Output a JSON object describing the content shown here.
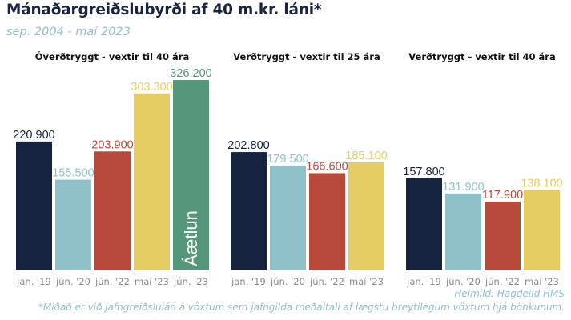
{
  "title": "Mánaðargreiðslubyrði af 40 m.kr. láni*",
  "subtitle": "sep. 2004 - maí 2023",
  "source": "Heimild: Hagdeild HMS",
  "footnote": "*Miðað er við jafngreiðslulán á vöxtum sem jafngilda meðaltali af lægstu breytilegum vöxtum hjá bönkunum.",
  "colors": {
    "jan19": "#15233f",
    "jun20": "#8fc1c9",
    "jun22": "#b84a3c",
    "mai23": "#e5cc63",
    "jun23": "#56967a"
  },
  "chart_data": [
    {
      "type": "bar",
      "title": "Óverðtryggt - vextir til 40 ára",
      "categories": [
        "jan. '19",
        "jún. '20",
        "jún. '22",
        "maí '23",
        "jún. '23"
      ],
      "values": [
        220900,
        155500,
        203900,
        303300,
        326200
      ],
      "labels": [
        "220.900",
        "155.500",
        "203.900",
        "303.300",
        "326.200"
      ],
      "colors": [
        "#15233f",
        "#8fc1c9",
        "#b84a3c",
        "#e5cc63",
        "#56967a"
      ],
      "annotation": "Áætlun",
      "ylim": [
        0,
        340000
      ]
    },
    {
      "type": "bar",
      "title": "Verðtryggt - vextir til 25 ára",
      "categories": [
        "jan. '19",
        "jún. '20",
        "jún. '22",
        "maí '23"
      ],
      "values": [
        202800,
        179500,
        166600,
        185100
      ],
      "labels": [
        "202.800",
        "179.500",
        "166.600",
        "185.100"
      ],
      "colors": [
        "#15233f",
        "#8fc1c9",
        "#b84a3c",
        "#e5cc63"
      ],
      "ylim": [
        0,
        340000
      ]
    },
    {
      "type": "bar",
      "title": "Verðtryggt - vextir til 40 ára",
      "categories": [
        "jan. '19",
        "jún. '20",
        "jún. '22",
        "maí '23"
      ],
      "values": [
        157800,
        131900,
        117900,
        138100
      ],
      "labels": [
        "157.800",
        "131.900",
        "117.900",
        "138.100"
      ],
      "colors": [
        "#15233f",
        "#8fc1c9",
        "#b84a3c",
        "#e5cc63"
      ],
      "ylim": [
        0,
        340000
      ]
    }
  ]
}
